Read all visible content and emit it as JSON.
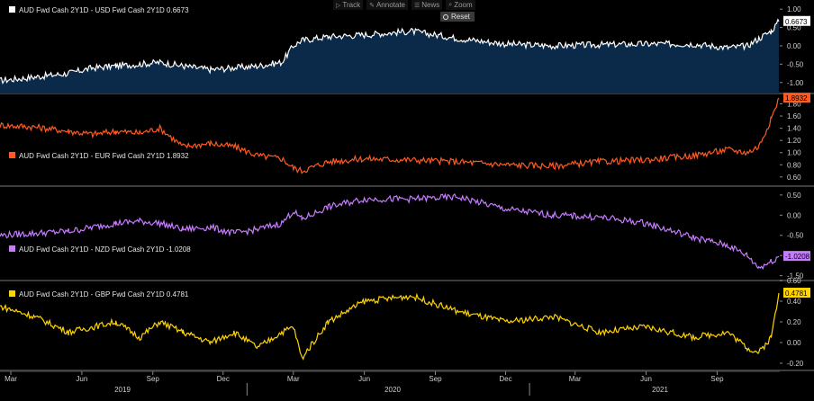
{
  "toolbar": {
    "track_label": "Track",
    "annotate_label": "Annotate",
    "news_label": "News",
    "zoom_label": "Zoom",
    "reset_label": "Reset"
  },
  "chart_data": {
    "type": "line",
    "x_tick_labels": [
      "Mar",
      "Jun",
      "Sep",
      "Dec",
      "Mar",
      "Jun",
      "Sep",
      "Dec",
      "Mar",
      "Jun",
      "Sep"
    ],
    "year_labels": [
      "2019",
      "2020",
      "2021"
    ],
    "x_range": [
      "2019-02-15",
      "2021-11-20"
    ],
    "panels": [
      {
        "legend": "AUD Fwd Cash 2Y1D - USD Fwd Cash 2Y1D 0.6673",
        "legend_position": "top-left",
        "last_value": "0.6673",
        "color": "#ffffff",
        "fill": "#0b2a4a",
        "ylim": [
          -1.3,
          1.25
        ],
        "y_ticks": [
          "1.00",
          "0.50",
          "0.00",
          "-0.50",
          "-1.00"
        ],
        "y_tick_values": [
          1.0,
          0.5,
          0.0,
          -0.5,
          -1.0
        ],
        "series_dates": [
          "2019-02-15",
          "2019-04-01",
          "2019-05-15",
          "2019-06-15",
          "2019-07-15",
          "2019-08-15",
          "2019-09-10",
          "2019-10-10",
          "2019-11-15",
          "2019-12-15",
          "2020-01-15",
          "2020-02-15",
          "2020-03-01",
          "2020-03-12",
          "2020-04-15",
          "2020-06-01",
          "2020-08-01",
          "2020-10-01",
          "2020-12-01",
          "2021-02-01",
          "2021-04-01",
          "2021-06-01",
          "2021-08-01",
          "2021-09-15",
          "2021-10-10",
          "2021-10-25",
          "2021-11-10",
          "2021-11-20"
        ],
        "series_values": [
          -0.95,
          -0.85,
          -0.75,
          -0.6,
          -0.55,
          -0.5,
          -0.45,
          -0.55,
          -0.65,
          -0.6,
          -0.55,
          -0.45,
          0.0,
          0.15,
          0.25,
          0.3,
          0.4,
          0.2,
          0.05,
          0.0,
          0.03,
          0.05,
          0.05,
          -0.05,
          0.0,
          0.2,
          0.4,
          0.6673
        ]
      },
      {
        "legend": "AUD Fwd Cash 2Y1D - EUR Fwd Cash 2Y1D 1.8932",
        "legend_position": "middle-left",
        "last_value": "1.8932",
        "color": "#ff5a1f",
        "ylim": [
          0.45,
          1.97
        ],
        "y_ticks": [
          "1.80",
          "1.60",
          "1.40",
          "1.20",
          "1.00",
          "0.80",
          "0.60"
        ],
        "y_tick_values": [
          1.8,
          1.6,
          1.4,
          1.2,
          1.0,
          0.8,
          0.6
        ],
        "series_dates": [
          "2019-02-15",
          "2019-04-01",
          "2019-05-15",
          "2019-06-15",
          "2019-07-15",
          "2019-08-15",
          "2019-09-10",
          "2019-10-10",
          "2019-11-15",
          "2019-12-15",
          "2020-01-15",
          "2020-02-15",
          "2020-03-01",
          "2020-03-12",
          "2020-04-15",
          "2020-06-01",
          "2020-08-01",
          "2020-10-01",
          "2020-12-01",
          "2021-02-01",
          "2021-04-01",
          "2021-06-01",
          "2021-08-01",
          "2021-09-15",
          "2021-10-10",
          "2021-10-25",
          "2021-11-10",
          "2021-11-20"
        ],
        "series_values": [
          1.45,
          1.42,
          1.35,
          1.3,
          1.35,
          1.32,
          1.4,
          1.1,
          1.15,
          1.1,
          0.95,
          0.9,
          0.75,
          0.7,
          0.85,
          0.9,
          0.88,
          0.85,
          0.8,
          0.78,
          0.85,
          0.88,
          0.95,
          1.05,
          1.0,
          1.1,
          1.55,
          1.8932
        ]
      },
      {
        "legend": "AUD Fwd Cash 2Y1D - NZD Fwd Cash 2Y1D -1.0208",
        "legend_position": "bottom-left",
        "last_value": "-1.0208",
        "color": "#c77bff",
        "ylim": [
          -1.62,
          0.72
        ],
        "y_ticks": [
          "0.50",
          "0.00",
          "-0.50",
          "-1.00",
          "-1.50"
        ],
        "y_tick_values": [
          0.5,
          0.0,
          -0.5,
          -1.0,
          -1.5
        ],
        "series_dates": [
          "2019-02-15",
          "2019-04-01",
          "2019-05-15",
          "2019-06-15",
          "2019-07-15",
          "2019-08-15",
          "2019-09-10",
          "2019-10-10",
          "2019-11-15",
          "2019-12-15",
          "2020-01-15",
          "2020-02-15",
          "2020-03-01",
          "2020-03-12",
          "2020-04-15",
          "2020-06-01",
          "2020-08-01",
          "2020-10-01",
          "2020-12-01",
          "2021-02-01",
          "2021-04-01",
          "2021-06-01",
          "2021-08-01",
          "2021-09-15",
          "2021-10-10",
          "2021-10-25",
          "2021-11-10",
          "2021-11-20"
        ],
        "series_values": [
          -0.5,
          -0.45,
          -0.4,
          -0.3,
          -0.2,
          -0.15,
          -0.2,
          -0.35,
          -0.3,
          -0.45,
          -0.35,
          -0.2,
          0.1,
          -0.1,
          0.2,
          0.4,
          0.4,
          0.45,
          0.15,
          0.0,
          -0.05,
          -0.2,
          -0.55,
          -0.75,
          -1.0,
          -1.3,
          -1.15,
          -1.0208
        ]
      },
      {
        "legend": "AUD Fwd Cash 2Y1D - GBP Fwd Cash 2Y1D 0.4781",
        "legend_position": "top-left",
        "last_value": "0.4781",
        "color": "#ffd400",
        "ylim": [
          -0.27,
          0.6
        ],
        "y_ticks": [
          "0.60",
          "0.40",
          "0.20",
          "0.00",
          "-0.20"
        ],
        "y_tick_values": [
          0.6,
          0.4,
          0.2,
          0.0,
          -0.2
        ],
        "series_dates": [
          "2019-02-15",
          "2019-04-01",
          "2019-05-15",
          "2019-06-15",
          "2019-07-15",
          "2019-08-15",
          "2019-09-10",
          "2019-10-10",
          "2019-11-15",
          "2019-12-15",
          "2020-01-15",
          "2020-02-15",
          "2020-03-01",
          "2020-03-12",
          "2020-04-15",
          "2020-06-01",
          "2020-08-01",
          "2020-10-01",
          "2020-12-01",
          "2021-02-01",
          "2021-04-01",
          "2021-06-01",
          "2021-08-01",
          "2021-09-15",
          "2021-10-10",
          "2021-10-25",
          "2021-11-10",
          "2021-11-20"
        ],
        "series_values": [
          0.35,
          0.25,
          0.1,
          0.15,
          0.2,
          0.05,
          0.2,
          0.1,
          0.0,
          0.1,
          -0.05,
          0.1,
          0.15,
          -0.15,
          0.2,
          0.4,
          0.45,
          0.3,
          0.2,
          0.25,
          0.1,
          0.15,
          0.05,
          0.1,
          -0.05,
          -0.1,
          0.05,
          0.4781
        ]
      }
    ]
  }
}
